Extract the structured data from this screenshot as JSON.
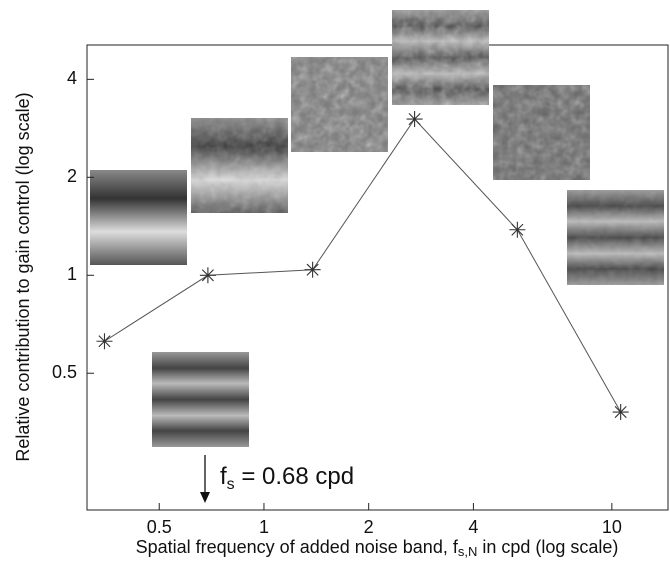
{
  "chart_data": {
    "type": "line",
    "xlabel": [
      "Spatial frequency of added noise band, f",
      "s,N",
      " in cpd (log scale)"
    ],
    "ylabel": "Relative contribution to gain control (log scale)",
    "annotation": [
      "f",
      "s",
      " = 0.68 cpd"
    ],
    "x": [
      0.348,
      0.69,
      1.38,
      2.71,
      5.35,
      10.6
    ],
    "series": [
      {
        "color": "#555555",
        "values": [
          0.627,
          1.0,
          1.04,
          3.02,
          1.38,
          0.38
        ]
      }
    ],
    "xlim": [
      0.31,
      14.5
    ],
    "ylim": [
      0.19,
      5.1
    ],
    "xticks": [
      0.5,
      1,
      2,
      4,
      10
    ],
    "yticks": [
      0.5,
      1,
      2,
      4
    ],
    "xscale": "log",
    "yscale": "log",
    "grid": false
  }
}
